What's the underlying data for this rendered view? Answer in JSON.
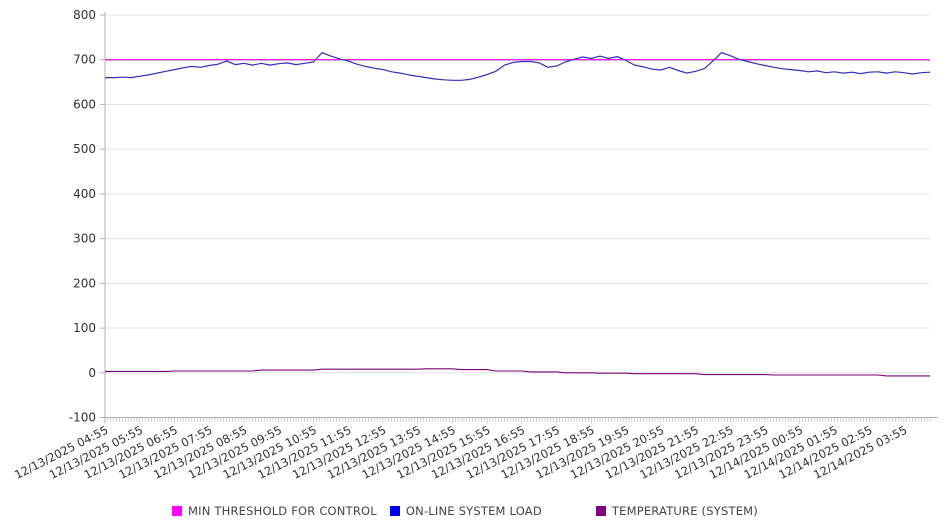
{
  "page": {
    "background": "#ffffff"
  },
  "chart_data": {
    "type": "line",
    "title": "",
    "xlabel": "",
    "ylabel": "",
    "ylim": [
      -100,
      800
    ],
    "ytick_step": 100,
    "ytick_labels": [
      "800",
      "700",
      "600",
      "500",
      "400",
      "300",
      "200",
      "100",
      "0",
      "-100"
    ],
    "grid": "horizontal",
    "legend_position": "bottom",
    "x_start": "12/13/2025 04:55",
    "x_interval_minutes": 15,
    "x_tick_labels": [
      "12/13/2025 04:55",
      "12/13/2025 05:55",
      "12/13/2025 06:55",
      "12/13/2025 07:55",
      "12/13/2025 08:55",
      "12/13/2025 09:55",
      "12/13/2025 10:55",
      "12/13/2025 11:55",
      "12/13/2025 12:55",
      "12/13/2025 13:55",
      "12/13/2025 14:55",
      "12/13/2025 15:55",
      "12/13/2025 16:55",
      "12/13/2025 17:55",
      "12/13/2025 18:55",
      "12/13/2025 19:55",
      "12/13/2025 20:55",
      "12/13/2025 21:55",
      "12/13/2025 22:55",
      "12/13/2025 23:55",
      "12/14/2025 00:55",
      "12/14/2025 01:55",
      "12/14/2025 02:55",
      "12/14/2025 03:55"
    ],
    "series": [
      {
        "name": "MIN THRESHOLD FOR CONTROL",
        "color": "#ff00ff",
        "line_color": "#e100e1",
        "constant": 700
      },
      {
        "name": "ON-LINE SYSTEM LOAD",
        "color": "#0000ee",
        "line_color": "#3030bd",
        "values": [
          660,
          660,
          661,
          660,
          663,
          666,
          670,
          674,
          678,
          682,
          685,
          683,
          687,
          690,
          697,
          689,
          692,
          688,
          692,
          688,
          691,
          693,
          689,
          692,
          695,
          716,
          708,
          702,
          697,
          690,
          685,
          681,
          678,
          673,
          670,
          666,
          663,
          660,
          657,
          655,
          654,
          654,
          656,
          661,
          667,
          674,
          688,
          694,
          696,
          696,
          693,
          683,
          686,
          695,
          701,
          706,
          703,
          708,
          703,
          707,
          698,
          688,
          684,
          679,
          677,
          683,
          676,
          670,
          674,
          680,
          697,
          716,
          709,
          701,
          696,
          691,
          687,
          683,
          680,
          678,
          676,
          673,
          675,
          671,
          673,
          670,
          672,
          669,
          672,
          673,
          670,
          673,
          671,
          668,
          671,
          672
        ]
      },
      {
        "name": "TEMPERATURE (SYSTEM)",
        "color": "#800080",
        "line_color": "#7a007a",
        "values": [
          3,
          3,
          3,
          3,
          3,
          3,
          3,
          3,
          4,
          4,
          4,
          4,
          4,
          4,
          4,
          4,
          4,
          4,
          6,
          6,
          6,
          6,
          6,
          6,
          6,
          8,
          8,
          8,
          8,
          8,
          8,
          8,
          8,
          8,
          8,
          8,
          8,
          9,
          9,
          9,
          9,
          7,
          7,
          7,
          7,
          4,
          4,
          4,
          4,
          2,
          2,
          2,
          2,
          0,
          0,
          0,
          0,
          -1,
          -1,
          -1,
          -1,
          -2,
          -2,
          -2,
          -2,
          -2,
          -2,
          -2,
          -2,
          -4,
          -4,
          -4,
          -4,
          -4,
          -4,
          -4,
          -4,
          -5,
          -5,
          -5,
          -5,
          -5,
          -5,
          -5,
          -5,
          -5,
          -5,
          -5,
          -5,
          -5,
          -7,
          -7,
          -7,
          -7,
          -7,
          -7
        ]
      }
    ]
  }
}
